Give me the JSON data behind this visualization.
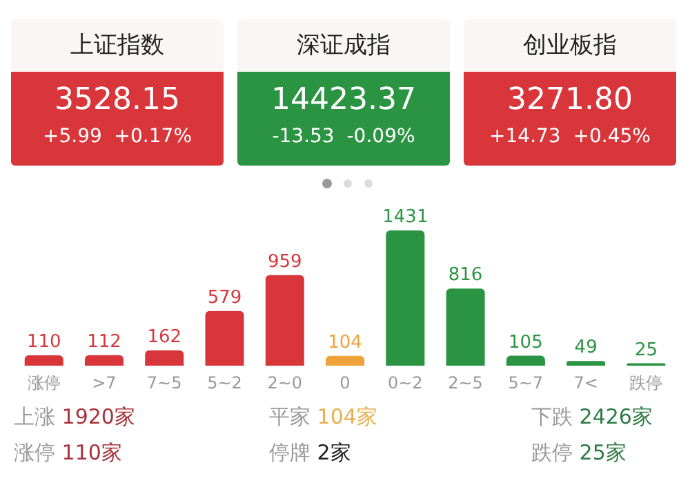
{
  "chart_data": [
    {
      "type": "other",
      "colors": [
        "#d8363a",
        "#2a9443",
        "#d8363a"
      ],
      "annotations": [
        "上证指数",
        "3528.15",
        "+5.99",
        "+0.17%",
        "深证成指",
        "14423.37",
        "-13.53",
        "-0.09%",
        "创业板指",
        "3271.80",
        "+14.73",
        "+0.45%"
      ]
    },
    {
      "type": "bar",
      "categories": [
        "涨停",
        ">7",
        "7~5",
        "5~2",
        "2~0",
        "0",
        "0~2",
        "2~5",
        "5~7",
        "7<",
        "跌停"
      ],
      "values": [
        110,
        112,
        162,
        579,
        959,
        104,
        1431,
        816,
        105,
        49,
        25
      ],
      "colors": [
        "#d8363a",
        "#d8363a",
        "#d8363a",
        "#d8363a",
        "#d8363a",
        "#f0a23a",
        "#2a9443",
        "#2a9443",
        "#2a9443",
        "#2a9443",
        "#2a9443"
      ],
      "data_labels": true,
      "annotations": [
        "上涨",
        "1920家",
        "平家",
        "104家",
        "下跌",
        "2426家",
        "涨停",
        "110家",
        "停牌",
        "2家",
        "跌停",
        "25家"
      ]
    }
  ]
}
